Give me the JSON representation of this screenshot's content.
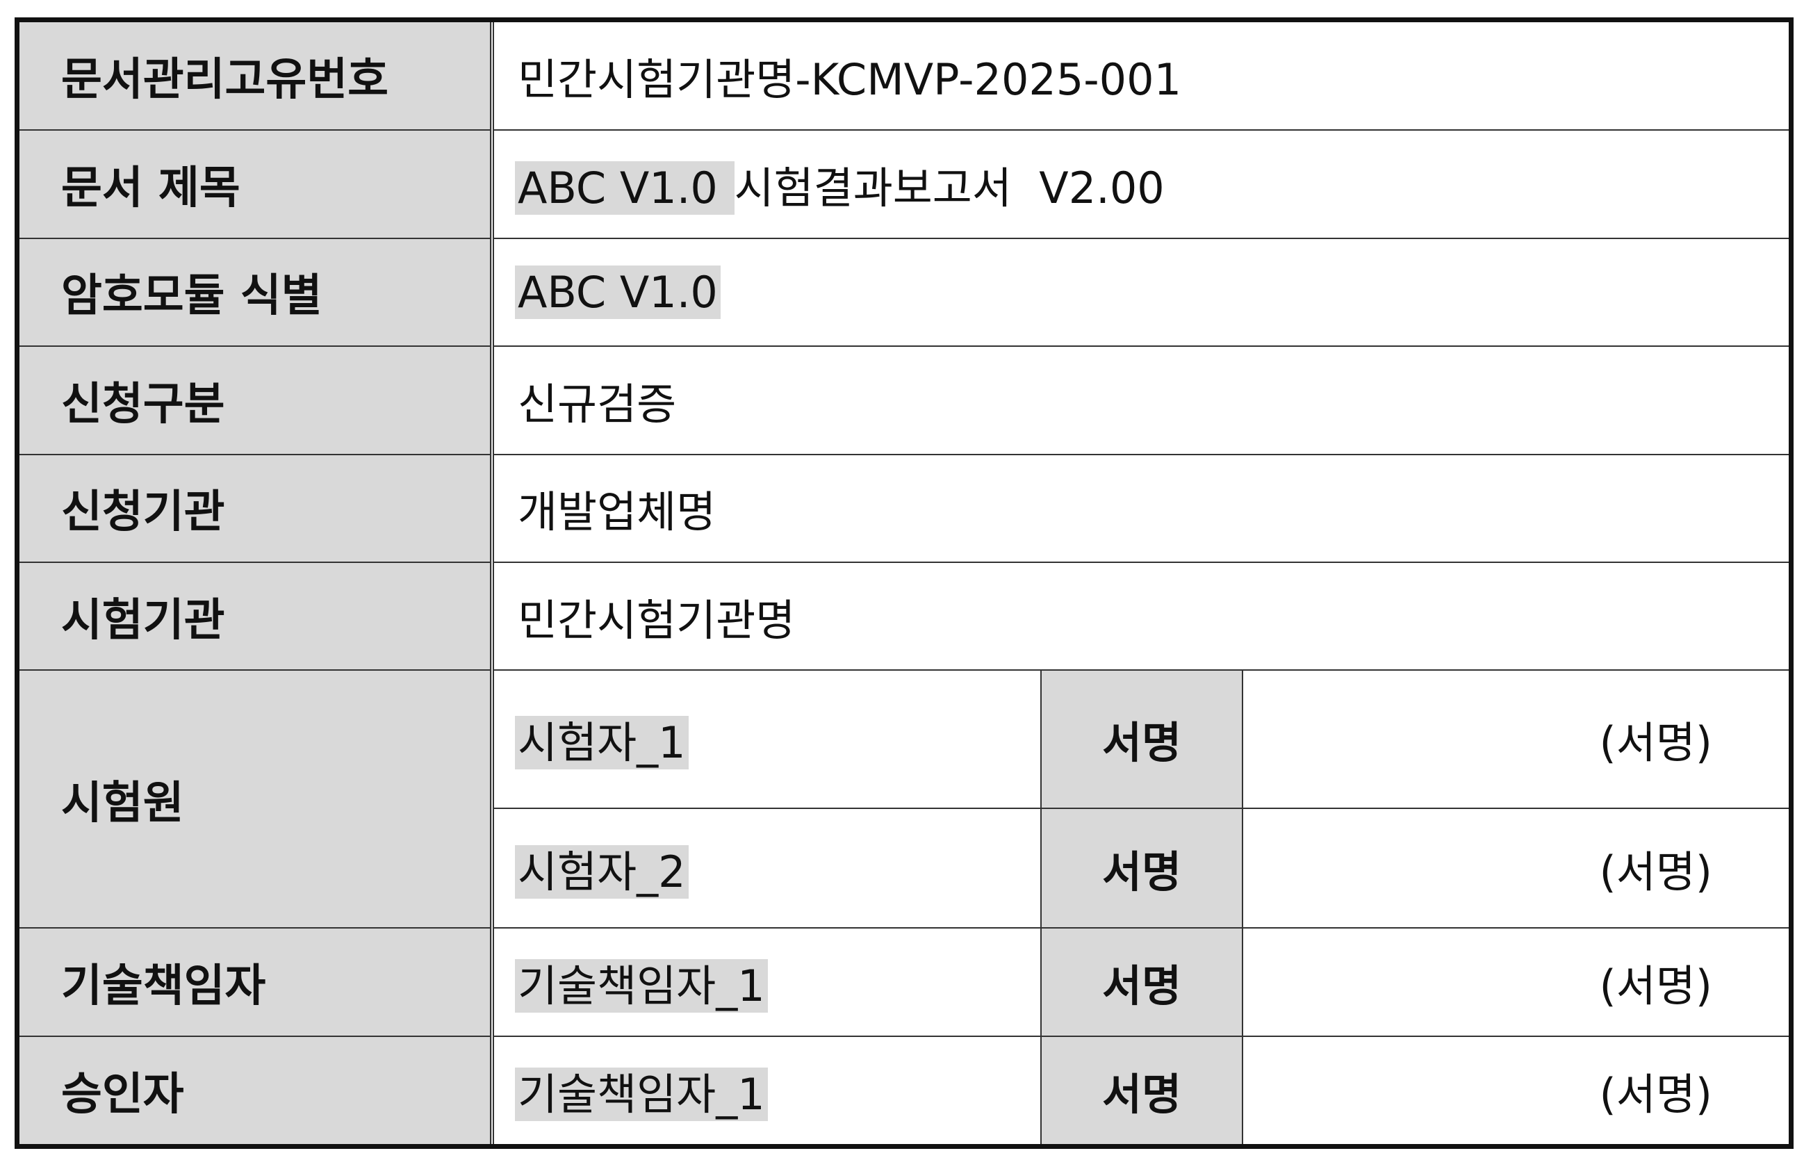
{
  "rows": {
    "doc_id": {
      "label": "문서관리고유번호",
      "value": "민간시험기관명-KCMVP-2025-001"
    },
    "doc_title": {
      "label": "문서 제목",
      "module_name": "ABC V1.0 ",
      "title_rest": "시험결과보고서  V2.00"
    },
    "module_id": {
      "label": "암호모듈 식별",
      "value": "ABC V1.0"
    },
    "application_type": {
      "label": "신청구분",
      "value": "신규검증"
    },
    "applicant_org": {
      "label": "신청기관",
      "value": "개발업체명"
    },
    "test_lab": {
      "label": "시험기관",
      "value": "민간시험기관명"
    },
    "testers": {
      "label": "시험원",
      "items": [
        {
          "name": "시험자_1",
          "sign_label": "서명",
          "sign_placeholder": "(서명)"
        },
        {
          "name": "시험자_2",
          "sign_label": "서명",
          "sign_placeholder": "(서명)"
        }
      ]
    },
    "tech_manager": {
      "label": "기술책임자",
      "name": "기술책임자_1",
      "sign_label": "서명",
      "sign_placeholder": "(서명)"
    },
    "approver": {
      "label": "승인자",
      "name": "기술책임자_1",
      "sign_label": "서명",
      "sign_placeholder": "(서명)"
    }
  },
  "colors": {
    "label_bg": "#d9d9d9",
    "border": "#111111",
    "highlight": "#d9d9d9"
  }
}
